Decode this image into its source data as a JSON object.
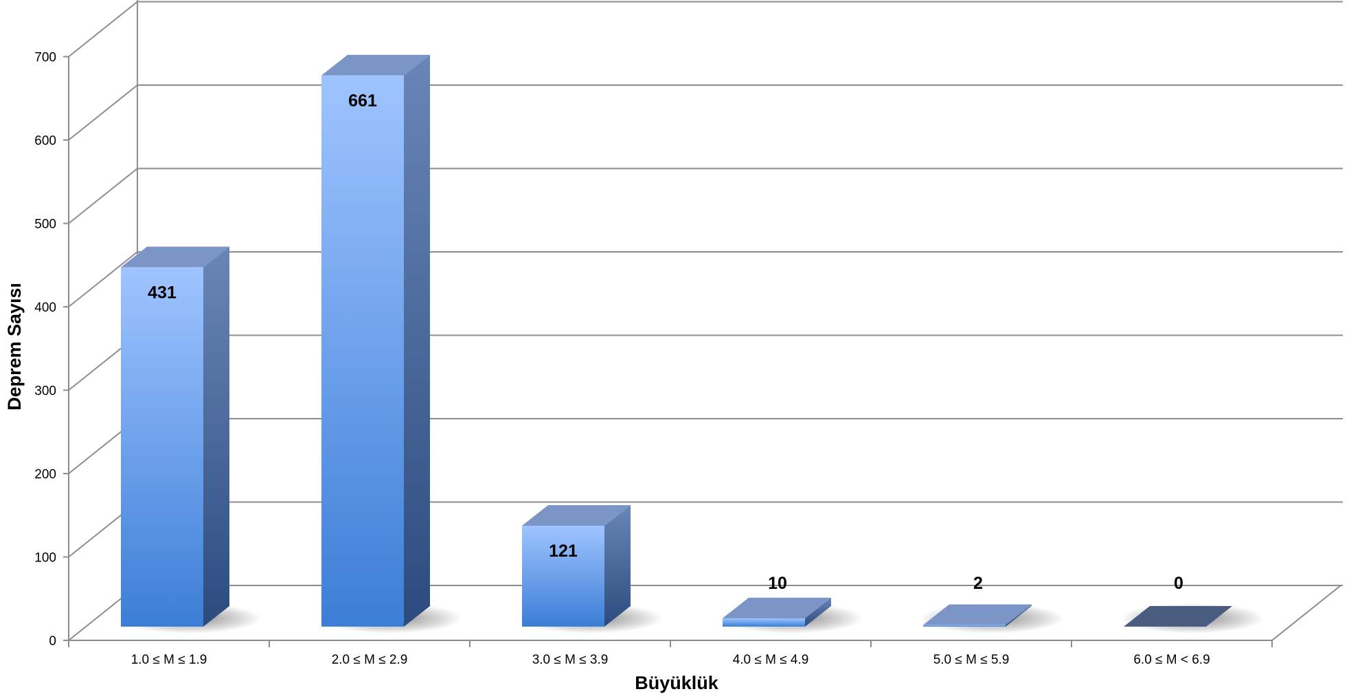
{
  "chart_data": {
    "type": "bar",
    "style": "3d-column",
    "categories": [
      "1.0 ≤ M ≤ 1.9",
      "2.0 ≤ M ≤ 2.9",
      "3.0 ≤ M ≤ 3.9",
      "4.0 ≤ M ≤ 4.9",
      "5.0 ≤ M ≤ 5.9",
      "6.0 ≤ M < 6.9"
    ],
    "values": [
      431,
      661,
      121,
      10,
      2,
      0
    ],
    "data_labels": [
      "431",
      "661",
      "121",
      "10",
      "2",
      "0"
    ],
    "xlabel": "Büyüklük",
    "ylabel": "Deprem Sayısı",
    "ylim": [
      0,
      700
    ],
    "yticks": [
      0,
      100,
      200,
      300,
      400,
      500,
      600,
      700
    ],
    "ytick_labels": [
      "0",
      "100",
      "200",
      "300",
      "400",
      "500",
      "600",
      "700"
    ],
    "grid": true,
    "legend": "none",
    "colors": {
      "bar_top_light": "#9dc3ff",
      "bar_bottom": "#3d7fd6",
      "bar_side_top": "#6a86b8",
      "bar_side_bottom": "#2c4d80",
      "bar_cap": "#7b96c6",
      "last_bar_cap": "#4a5d80",
      "gridline": "#8c8c8c",
      "text": "#000000"
    }
  }
}
